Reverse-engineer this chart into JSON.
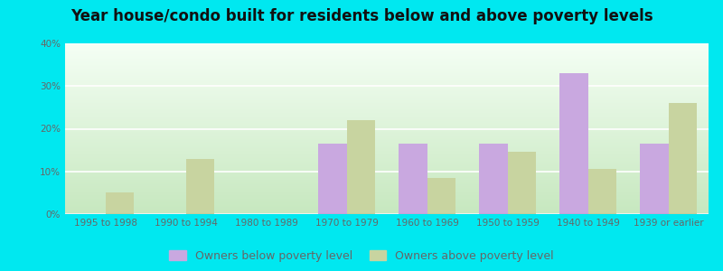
{
  "title": "Year house/condo built for residents below and above poverty levels",
  "categories": [
    "1995 to 1998",
    "1990 to 1994",
    "1980 to 1989",
    "1970 to 1979",
    "1960 to 1969",
    "1950 to 1959",
    "1940 to 1949",
    "1939 or earlier"
  ],
  "below_poverty": [
    0,
    0,
    0,
    16.5,
    16.5,
    16.5,
    33.0,
    16.5
  ],
  "above_poverty": [
    5.0,
    13.0,
    0,
    22.0,
    8.5,
    14.5,
    10.5,
    26.0
  ],
  "below_color": "#c9a8e0",
  "above_color": "#c8d4a0",
  "outer_bg": "#00e8f0",
  "plot_bg_bottom_left": "#c8e6c0",
  "plot_bg_top_right": "#f8fff8",
  "ylim": [
    0,
    40
  ],
  "yticks": [
    0,
    10,
    20,
    30,
    40
  ],
  "legend_below": "Owners below poverty level",
  "legend_above": "Owners above poverty level",
  "bar_width": 0.35,
  "title_fontsize": 12,
  "tick_fontsize": 7.5,
  "legend_fontsize": 9,
  "tick_color": "#666666",
  "grid_color": "#ffffff",
  "title_color": "#111111"
}
